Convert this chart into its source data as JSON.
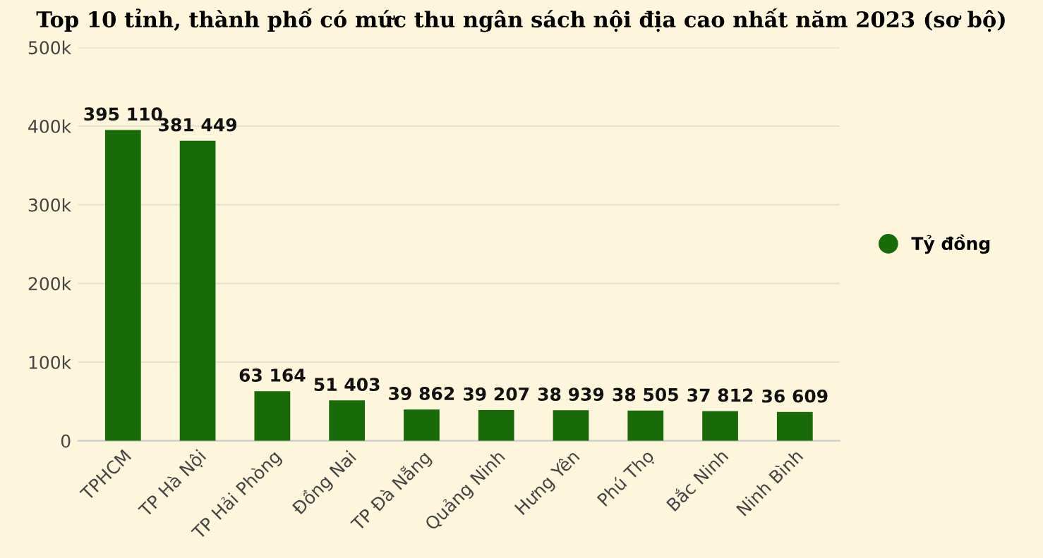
{
  "chart_data": {
    "type": "bar",
    "title": "Top 10 tỉnh, thành phố có mức thu ngân sách nội địa cao nhất năm 2023 (sơ bộ)",
    "categories": [
      "TPHCM",
      "TP Hà Nội",
      "TP Hải Phòng",
      "Đồng Nai",
      "TP Đà Nẵng",
      "Quảng Ninh",
      "Hưng Yên",
      "Phú Thọ",
      "Bắc Ninh",
      "Ninh Bình"
    ],
    "series": [
      {
        "name": "Tỷ đồng",
        "color": "#196b0a",
        "values": [
          395110,
          381449,
          63164,
          51403,
          39862,
          39207,
          38939,
          38505,
          37812,
          36609
        ],
        "value_labels": [
          "395 110",
          "381 449",
          "63 164",
          "51 403",
          "39 862",
          "39 207",
          "38 939",
          "38 505",
          "37 812",
          "36 609"
        ]
      }
    ],
    "ylim": [
      0,
      500000
    ],
    "yticks": [
      {
        "value": 0,
        "label": "0"
      },
      {
        "value": 100000,
        "label": "100k"
      },
      {
        "value": 200000,
        "label": "200k"
      },
      {
        "value": 300000,
        "label": "300k"
      },
      {
        "value": 400000,
        "label": "400k"
      },
      {
        "value": 500000,
        "label": "500k"
      }
    ],
    "grid": "y",
    "legend": "right"
  }
}
